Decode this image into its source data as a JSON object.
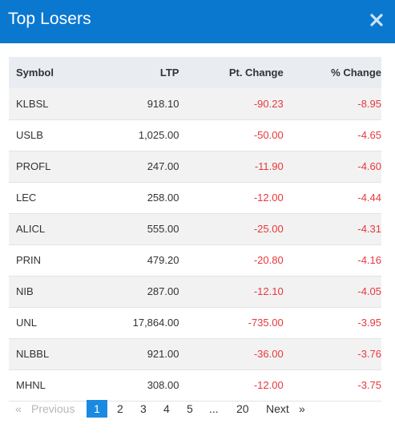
{
  "modal": {
    "title": "Top Losers",
    "close_label": "×"
  },
  "table": {
    "columns": [
      "Symbol",
      "LTP",
      "Pt. Change",
      "% Change"
    ],
    "rows": [
      {
        "symbol": "KLBSL",
        "ltp": "918.10",
        "pt_change": "-90.23",
        "pct_change": "-8.95"
      },
      {
        "symbol": "USLB",
        "ltp": "1,025.00",
        "pt_change": "-50.00",
        "pct_change": "-4.65"
      },
      {
        "symbol": "PROFL",
        "ltp": "247.00",
        "pt_change": "-11.90",
        "pct_change": "-4.60"
      },
      {
        "symbol": "LEC",
        "ltp": "258.00",
        "pt_change": "-12.00",
        "pct_change": "-4.44"
      },
      {
        "symbol": "ALICL",
        "ltp": "555.00",
        "pt_change": "-25.00",
        "pct_change": "-4.31"
      },
      {
        "symbol": "PRIN",
        "ltp": "479.20",
        "pt_change": "-20.80",
        "pct_change": "-4.16"
      },
      {
        "symbol": "NIB",
        "ltp": "287.00",
        "pt_change": "-12.10",
        "pct_change": "-4.05"
      },
      {
        "symbol": "UNL",
        "ltp": "17,864.00",
        "pt_change": "-735.00",
        "pct_change": "-3.95"
      },
      {
        "symbol": "NLBBL",
        "ltp": "921.00",
        "pt_change": "-36.00",
        "pct_change": "-3.76"
      },
      {
        "symbol": "MHNL",
        "ltp": "308.00",
        "pt_change": "-12.00",
        "pct_change": "-3.75"
      }
    ]
  },
  "pagination": {
    "prev_arrow": "«",
    "previous_label": "Previous",
    "pages": [
      "1",
      "2",
      "3",
      "4",
      "5",
      "...",
      "20"
    ],
    "active_page": "1",
    "next_label": "Next",
    "next_arrow": "»"
  },
  "colors": {
    "header_bg": "#0b78d0",
    "negative": "#e8383d",
    "active_page_bg": "#1a8ae0"
  }
}
